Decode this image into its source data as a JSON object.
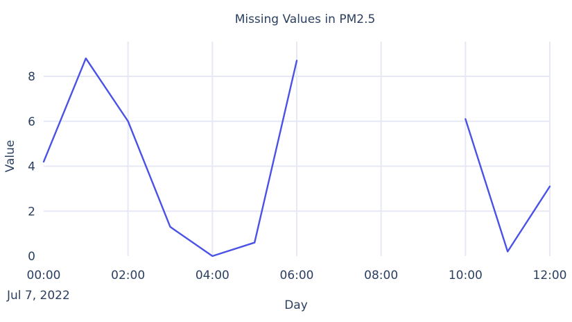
{
  "chart_data": {
    "type": "line",
    "title": "Missing Values in PM2.5",
    "xlabel": "Day",
    "ylabel": "Value",
    "date_label": "Jul 7, 2022",
    "x_ticks": [
      "00:00",
      "02:00",
      "04:00",
      "06:00",
      "08:00",
      "10:00",
      "12:00"
    ],
    "y_ticks": [
      "0",
      "2",
      "4",
      "6",
      "8"
    ],
    "ylim": [
      0,
      9
    ],
    "xlim": [
      "00:00",
      "12:00"
    ],
    "grid": true,
    "line_color": "#4a52e6",
    "series": [
      {
        "x": [
          "00:00",
          "01:00",
          "02:00",
          "03:00",
          "04:00",
          "05:00",
          "06:00",
          "07:00",
          "08:00",
          "09:00",
          "10:00",
          "11:00",
          "12:00"
        ],
        "values": [
          4.2,
          8.8,
          6.0,
          1.3,
          0.0,
          0.6,
          8.7,
          null,
          null,
          null,
          6.1,
          0.2,
          3.1
        ]
      }
    ]
  }
}
